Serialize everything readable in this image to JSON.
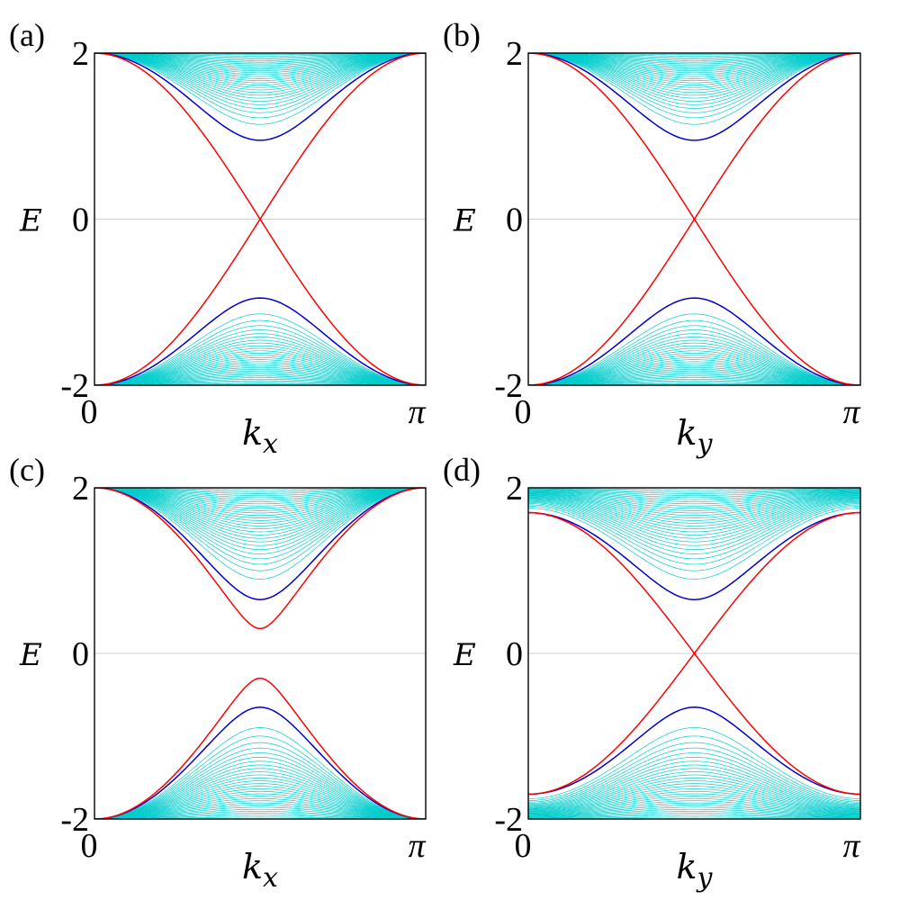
{
  "chart_data": [
    {
      "type": "line",
      "panel_label": "(a)",
      "xlabel": "k",
      "xlabel_sub": "x",
      "ylabel": "E",
      "xlim": [
        0,
        3.14159
      ],
      "ylim": [
        -2,
        2
      ],
      "xticks": [
        "0",
        "π"
      ],
      "yticks": [
        "-2",
        "0",
        "2"
      ],
      "bulk": {
        "band_count": 30,
        "min_gap": 0.95,
        "outer_gap": 2.0,
        "edge_value": 2.0
      },
      "series": [
        {
          "role": "bulk",
          "color": "#00cccc",
          "form": "bulk-family"
        },
        {
          "role": "bulk-edge",
          "color": "#0000cc",
          "form": "band",
          "gap": 0.95,
          "edge_value": 2.0
        },
        {
          "role": "edge",
          "color": "#ff0000",
          "form": "crossing",
          "amplitude": 2.0
        }
      ]
    },
    {
      "type": "line",
      "panel_label": "(b)",
      "xlabel": "k",
      "xlabel_sub": "y",
      "ylabel": "E",
      "xlim": [
        0,
        3.14159
      ],
      "ylim": [
        -2,
        2
      ],
      "xticks": [
        "0",
        "π"
      ],
      "yticks": [
        "-2",
        "0",
        "2"
      ],
      "bulk": {
        "band_count": 30,
        "min_gap": 0.95,
        "outer_gap": 2.0,
        "edge_value": 2.0
      },
      "series": [
        {
          "role": "bulk",
          "color": "#00cccc",
          "form": "bulk-family"
        },
        {
          "role": "bulk-edge",
          "color": "#0000cc",
          "form": "band",
          "gap": 0.95,
          "edge_value": 2.0
        },
        {
          "role": "edge",
          "color": "#ff0000",
          "form": "crossing",
          "amplitude": 2.0
        }
      ]
    },
    {
      "type": "line",
      "panel_label": "(c)",
      "xlabel": "k",
      "xlabel_sub": "x",
      "ylabel": "E",
      "xlim": [
        0,
        3.14159
      ],
      "ylim": [
        -2,
        2
      ],
      "xticks": [
        "0",
        "π"
      ],
      "yticks": [
        "-2",
        "0",
        "2"
      ],
      "bulk": {
        "band_count": 30,
        "min_gap": 0.65,
        "outer_gap": 2.0,
        "edge_value": 2.0
      },
      "series": [
        {
          "role": "bulk",
          "color": "#00cccc",
          "form": "bulk-family"
        },
        {
          "role": "bulk-edge",
          "color": "#0000cc",
          "form": "band",
          "gap": 0.65,
          "edge_value": 2.0
        },
        {
          "role": "edge",
          "color": "#ff0000",
          "form": "band",
          "gap": 0.3,
          "edge_value": 2.0
        }
      ]
    },
    {
      "type": "line",
      "panel_label": "(d)",
      "xlabel": "k",
      "xlabel_sub": "y",
      "ylabel": "E",
      "xlim": [
        0,
        3.14159
      ],
      "ylim": [
        -2,
        2
      ],
      "xticks": [
        "0",
        "π"
      ],
      "yticks": [
        "-2",
        "0",
        "2"
      ],
      "bulk": {
        "band_count": 30,
        "min_gap": 0.65,
        "outer_gap": 2.0,
        "edge_value": 1.7
      },
      "series": [
        {
          "role": "bulk",
          "color": "#00cccc",
          "form": "bulk-family"
        },
        {
          "role": "bulk-edge",
          "color": "#0000cc",
          "form": "band",
          "gap": 0.65,
          "edge_value": 1.7
        },
        {
          "role": "edge",
          "color": "#ff0000",
          "form": "crossing",
          "amplitude": 1.7
        }
      ]
    }
  ]
}
